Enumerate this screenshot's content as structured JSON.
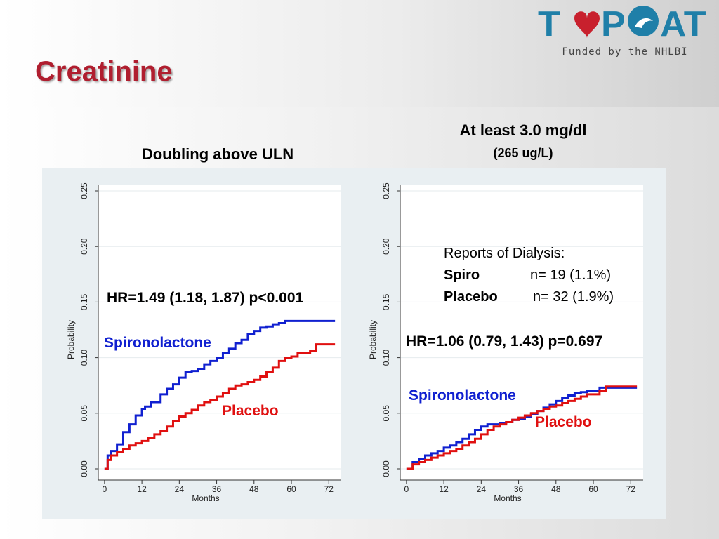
{
  "slide": {
    "title": "Creatinine"
  },
  "logo": {
    "text": "TOPCAT",
    "subtitle": "Funded by the NHLBI",
    "brand_color": "#1f7fa8",
    "heart_color": "#c8202d"
  },
  "colors": {
    "spiro": "#1020d0",
    "placebo": "#e01010",
    "title": "#b01e2f"
  },
  "chart_data": [
    {
      "type": "line",
      "title": "Doubling above ULN",
      "xlabel": "Months",
      "ylabel": "Probability",
      "xticks": [
        0,
        12,
        24,
        36,
        48,
        60,
        72
      ],
      "yticks": [
        "0.00",
        "0.05",
        "0.10",
        "0.15",
        "0.20",
        "0.25"
      ],
      "xlim": [
        -2,
        76
      ],
      "ylim": [
        0,
        0.25
      ],
      "annotation": "HR=1.49 (1.18, 1.87) p<0.001",
      "series": [
        {
          "name": "Spironolactone",
          "color": "#1020d0",
          "x": [
            0,
            1,
            2,
            4,
            6,
            8,
            10,
            12,
            13,
            15,
            18,
            20,
            22,
            24,
            26,
            28,
            30,
            32,
            34,
            36,
            38,
            40,
            42,
            44,
            46,
            48,
            50,
            52,
            54,
            56,
            58,
            60,
            62,
            66,
            70,
            74
          ],
          "y": [
            0,
            0.012,
            0.016,
            0.022,
            0.033,
            0.04,
            0.048,
            0.054,
            0.056,
            0.06,
            0.067,
            0.072,
            0.076,
            0.082,
            0.087,
            0.088,
            0.09,
            0.094,
            0.097,
            0.1,
            0.104,
            0.108,
            0.113,
            0.116,
            0.121,
            0.124,
            0.127,
            0.128,
            0.13,
            0.131,
            0.133,
            0.133,
            0.133,
            0.133,
            0.133,
            0.133
          ]
        },
        {
          "name": "Placebo",
          "color": "#e01010",
          "x": [
            0,
            1,
            2,
            4,
            6,
            8,
            10,
            12,
            14,
            16,
            18,
            20,
            22,
            24,
            26,
            28,
            30,
            32,
            34,
            36,
            38,
            40,
            42,
            44,
            46,
            48,
            50,
            52,
            54,
            56,
            58,
            60,
            62,
            64,
            66,
            68,
            70,
            74
          ],
          "y": [
            0,
            0.008,
            0.012,
            0.015,
            0.018,
            0.021,
            0.023,
            0.025,
            0.028,
            0.031,
            0.034,
            0.038,
            0.043,
            0.047,
            0.05,
            0.053,
            0.057,
            0.06,
            0.062,
            0.065,
            0.068,
            0.072,
            0.075,
            0.076,
            0.078,
            0.08,
            0.083,
            0.087,
            0.091,
            0.097,
            0.1,
            0.101,
            0.104,
            0.104,
            0.106,
            0.112,
            0.112,
            0.112
          ]
        }
      ]
    },
    {
      "type": "line",
      "title": "At least 3.0 mg/dl",
      "subtitle": "(265 ug/L)",
      "xlabel": "Months",
      "ylabel": "Probability",
      "xticks": [
        0,
        12,
        24,
        36,
        48,
        60,
        72
      ],
      "yticks": [
        "0.00",
        "0.05",
        "0.10",
        "0.15",
        "0.20",
        "0.25"
      ],
      "xlim": [
        -2,
        76
      ],
      "ylim": [
        0,
        0.25
      ],
      "annotation": "HR=1.06 (0.79, 1.43) p=0.697",
      "series": [
        {
          "name": "Spironolactone",
          "color": "#1020d0",
          "x": [
            0,
            2,
            4,
            6,
            8,
            10,
            12,
            14,
            16,
            18,
            20,
            22,
            24,
            26,
            28,
            30,
            32,
            34,
            36,
            38,
            40,
            42,
            44,
            46,
            48,
            50,
            52,
            54,
            56,
            58,
            60,
            62,
            64,
            66,
            70,
            74
          ],
          "y": [
            0,
            0.006,
            0.009,
            0.012,
            0.014,
            0.016,
            0.019,
            0.021,
            0.024,
            0.027,
            0.031,
            0.035,
            0.038,
            0.04,
            0.04,
            0.041,
            0.042,
            0.044,
            0.045,
            0.047,
            0.049,
            0.052,
            0.055,
            0.058,
            0.061,
            0.064,
            0.066,
            0.068,
            0.069,
            0.07,
            0.07,
            0.073,
            0.073,
            0.073,
            0.073,
            0.073
          ]
        },
        {
          "name": "Placebo",
          "color": "#e01010",
          "x": [
            0,
            2,
            4,
            6,
            8,
            10,
            12,
            14,
            16,
            18,
            20,
            22,
            24,
            26,
            28,
            30,
            32,
            34,
            36,
            38,
            40,
            42,
            44,
            46,
            48,
            50,
            52,
            54,
            56,
            58,
            60,
            62,
            64,
            66,
            70,
            74
          ],
          "y": [
            0,
            0.004,
            0.006,
            0.008,
            0.01,
            0.012,
            0.014,
            0.016,
            0.018,
            0.021,
            0.024,
            0.027,
            0.031,
            0.035,
            0.038,
            0.04,
            0.042,
            0.044,
            0.046,
            0.048,
            0.05,
            0.052,
            0.054,
            0.056,
            0.057,
            0.059,
            0.061,
            0.063,
            0.065,
            0.067,
            0.067,
            0.07,
            0.074,
            0.074,
            0.074,
            0.074
          ]
        }
      ],
      "dialysis": {
        "heading": "Reports of Dialysis:",
        "spiro_label": "Spiro",
        "spiro_value": "n= 19 (1.1%)",
        "placebo_label": "Placebo",
        "placebo_value": "n= 32 (1.9%)"
      }
    }
  ]
}
